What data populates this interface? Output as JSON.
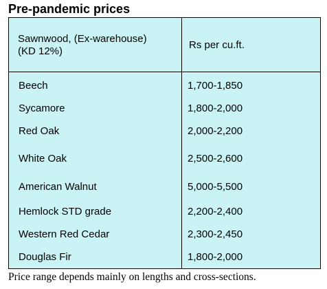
{
  "title": "Pre-pandemic prices",
  "table": {
    "header": {
      "species_line1": "Sawnwood, (Ex-warehouse)",
      "species_line2": "(KD 12%)",
      "price": "Rs per cu.ft."
    },
    "rows": [
      {
        "species": "Beech",
        "price": "1,700-1,850"
      },
      {
        "species": "Sycamore",
        "price": "1,800-2,000"
      },
      {
        "species": "Red Oak",
        "price": "2,000-2,200"
      },
      {
        "species": "White Oak",
        "price": "2,500-2,600"
      },
      {
        "species": "American Walnut",
        "price": "5,000-5,500"
      },
      {
        "species": "Hemlock STD grade",
        "price": "2,200-2,400"
      },
      {
        "species": "Western Red Cedar",
        "price": "2,300-2,450"
      },
      {
        "species": "Douglas Fir",
        "price": "1,800-2,000"
      }
    ]
  },
  "footnote": "Price range depends mainly on lengths and cross-sections."
}
